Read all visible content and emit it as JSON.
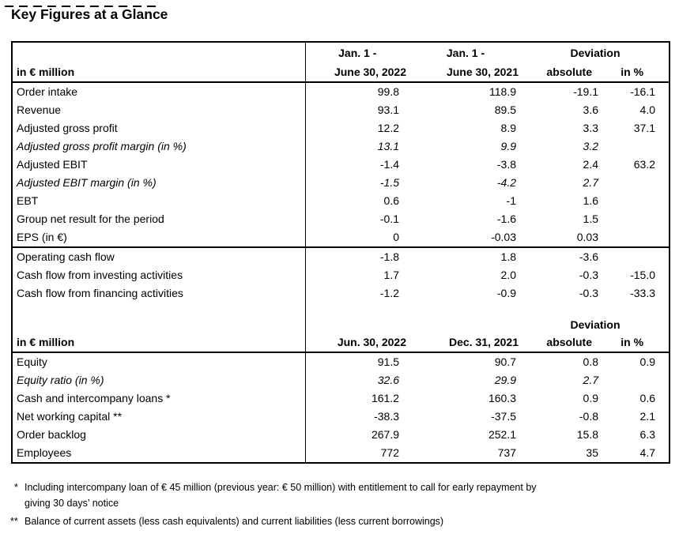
{
  "title": "Key Figures at a Glance",
  "table": {
    "header1": {
      "unit_label": "in € million",
      "col2_line1": "Jan. 1 -",
      "col2_line2": "June 30, 2022",
      "col3_line1": "Jan. 1 -",
      "col3_line2": "June 30, 2021",
      "deviation_label": "Deviation",
      "absolute_label": "absolute",
      "percent_label": "in %"
    },
    "section_pl": [
      {
        "label": "Order intake",
        "values": [
          "99.8",
          "118.9",
          "-19.1",
          "-16.1"
        ]
      },
      {
        "label": "Revenue",
        "values": [
          "93.1",
          "89.5",
          "3.6",
          "4.0"
        ]
      },
      {
        "label": "Adjusted gross profit",
        "values": [
          "12.2",
          "8.9",
          "3.3",
          "37.1"
        ]
      },
      {
        "label": "Adjusted gross profit margin (in %)",
        "values": [
          "13.1",
          "9.9",
          "3.2",
          ""
        ],
        "italic": true
      },
      {
        "label": "Adjusted EBIT",
        "values": [
          "-1.4",
          "-3.8",
          "2.4",
          "63.2"
        ]
      },
      {
        "label": "Adjusted EBIT margin (in %)",
        "values": [
          "-1.5",
          "-4.2",
          "2.7",
          ""
        ],
        "italic": true
      },
      {
        "label": "EBT",
        "values": [
          "0.6",
          "-1",
          "1.6",
          ""
        ]
      },
      {
        "label": "Group net result for the period",
        "values": [
          "-0.1",
          "-1.6",
          "1.5",
          ""
        ]
      },
      {
        "label": "EPS (in €)",
        "values": [
          "0",
          "-0.03",
          "0.03",
          ""
        ]
      }
    ],
    "section_cf": [
      {
        "label": "Operating cash flow",
        "values": [
          "-1.8",
          "1.8",
          "-3.6",
          ""
        ]
      },
      {
        "label": "Cash flow from investing activities",
        "values": [
          "1.7",
          "2.0",
          "-0.3",
          "-15.0"
        ]
      },
      {
        "label": "Cash flow from financing activities",
        "values": [
          "-1.2",
          "-0.9",
          "-0.3",
          "-33.3"
        ]
      }
    ],
    "header2": {
      "unit_label": "in € million",
      "col2_label": "Jun. 30, 2022",
      "col3_label": "Dec. 31, 2021",
      "deviation_label": "Deviation",
      "absolute_label": "absolute",
      "percent_label": "in %"
    },
    "section_bs": [
      {
        "label": "Equity",
        "values": [
          "91.5",
          "90.7",
          "0.8",
          "0.9"
        ]
      },
      {
        "label": "Equity ratio (in %)",
        "values": [
          "32.6",
          "29.9",
          "2.7",
          ""
        ],
        "italic": true
      },
      {
        "label": "Cash and intercompany loans *",
        "values": [
          "161.2",
          "160.3",
          "0.9",
          "0.6"
        ]
      },
      {
        "label": "Net working capital **",
        "values": [
          "-38.3",
          "-37.5",
          "-0.8",
          "2.1"
        ]
      },
      {
        "label": "Order backlog",
        "values": [
          "267.9",
          "252.1",
          "15.8",
          "6.3"
        ]
      },
      {
        "label": "Employees",
        "values": [
          "772",
          "737",
          "35",
          "4.7"
        ]
      }
    ]
  },
  "footnotes": [
    {
      "marker": "*",
      "lines": [
        "Including intercompany loan of € 45 million (previous year: € 50 million) with entitlement to call for early repayment by",
        "giving 30 days’ notice"
      ]
    },
    {
      "marker": "**",
      "lines": [
        "Balance of current assets (less cash equivalents) and current liabilities (less current borrowings)"
      ]
    }
  ]
}
